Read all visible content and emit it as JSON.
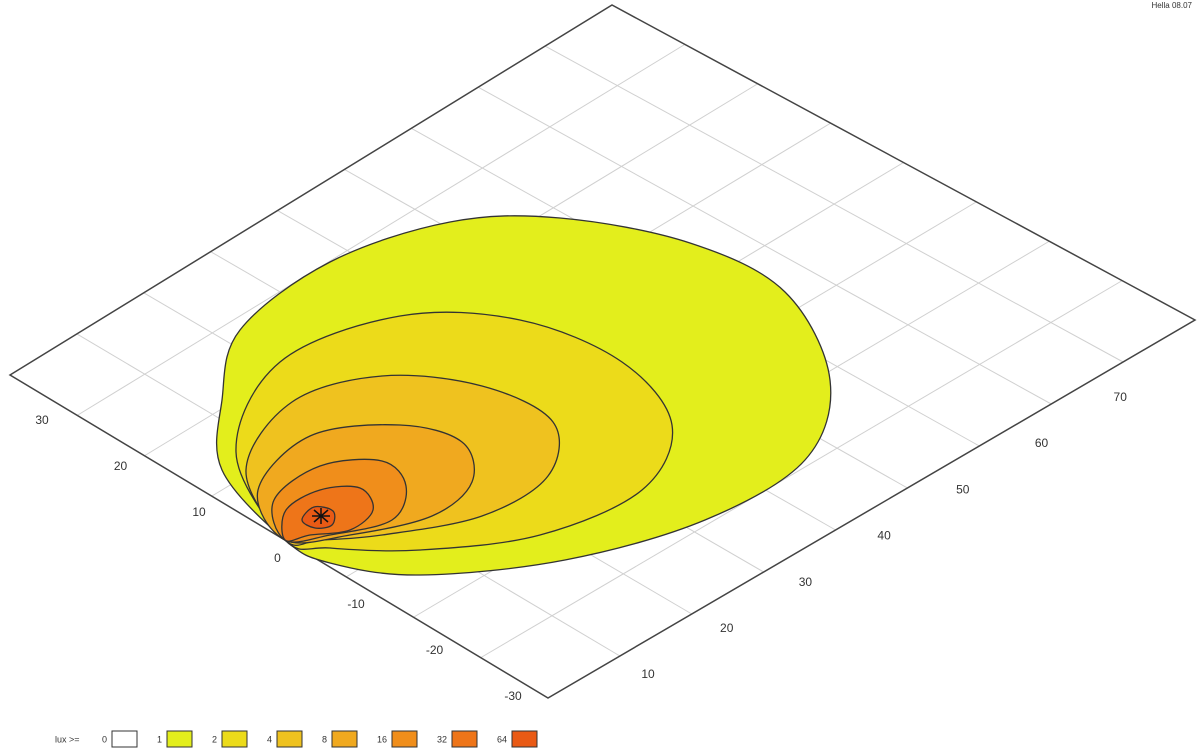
{
  "header": {
    "stamp": "Hella 08.07"
  },
  "left_axis": {
    "labels": [
      "30",
      "20",
      "10",
      "0",
      "-10",
      "-20",
      "-30"
    ]
  },
  "right_axis": {
    "labels": [
      "10",
      "20",
      "30",
      "40",
      "50",
      "60",
      "70"
    ]
  },
  "legend": {
    "title": "lux >=",
    "items": [
      {
        "label": "0",
        "color": "#ffffff"
      },
      {
        "label": "1",
        "color": "#e3ee1c"
      },
      {
        "label": "2",
        "color": "#ecdb1a"
      },
      {
        "label": "4",
        "color": "#efc21f"
      },
      {
        "label": "8",
        "color": "#f0a91f"
      },
      {
        "label": "16",
        "color": "#f08e1b"
      },
      {
        "label": "32",
        "color": "#ee7519"
      },
      {
        "label": "64",
        "color": "#e95a15"
      }
    ]
  }
}
